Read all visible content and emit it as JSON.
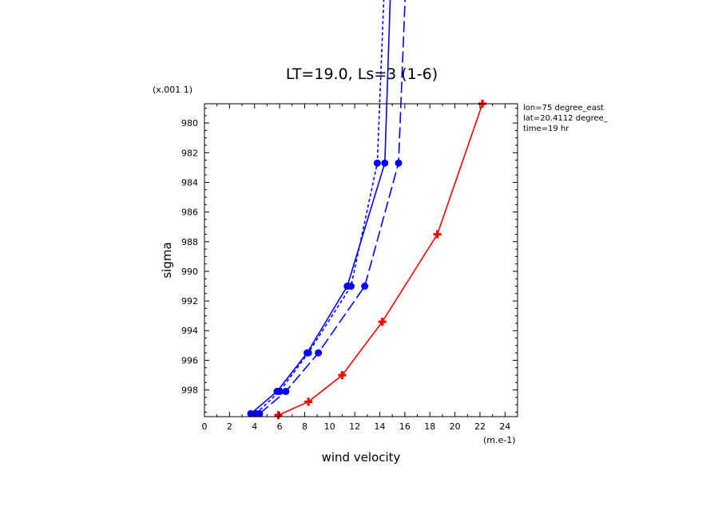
{
  "chart_data": {
    "type": "line",
    "title": "LT=19.0, Ls=3 (1-6)",
    "xlabel": "wind velocity",
    "ylabel": "sigma",
    "x_unit": "(m.e-1)",
    "y_unit": "(x.001 1)",
    "xlim": [
      0,
      25
    ],
    "ylim": [
      999.8,
      978.7
    ],
    "x_ticks": [
      "0",
      "2",
      "4",
      "6",
      "8",
      "10",
      "12",
      "14",
      "16",
      "18",
      "20",
      "22",
      "24"
    ],
    "y_ticks": [
      "980",
      "982",
      "984",
      "986",
      "988",
      "990",
      "992",
      "994",
      "996",
      "998"
    ],
    "annotations": [
      "lon=75 degree_east",
      "lat=20.4112 degree_",
      "time=19 hr"
    ],
    "grid": false,
    "series": [
      {
        "color": "#0000ff",
        "dash": "",
        "x": [
          3.7,
          5.8,
          8.2,
          11.4,
          14.4,
          14.9
        ],
        "y": [
          999.6,
          998.1,
          995.5,
          991.0,
          982.7,
          970.0
        ]
      },
      {
        "color": "#0000ff",
        "dash": "4,3",
        "x": [
          4.1,
          6.0,
          8.3,
          11.7,
          13.8,
          14.4
        ],
        "y": [
          999.6,
          998.1,
          995.5,
          991.0,
          982.7,
          970.0
        ]
      },
      {
        "color": "#0000ff",
        "dash": "14,5",
        "x": [
          4.4,
          6.5,
          9.1,
          12.8,
          15.5,
          16.1
        ],
        "y": [
          999.6,
          998.1,
          995.5,
          991.0,
          982.7,
          970.0
        ]
      },
      {
        "color": "#ff0000",
        "dash": "",
        "x": [
          5.9,
          8.3,
          11.0,
          14.2,
          18.6,
          22.2
        ],
        "y": [
          999.7,
          998.8,
          997.0,
          993.4,
          987.5,
          978.7
        ]
      }
    ]
  }
}
